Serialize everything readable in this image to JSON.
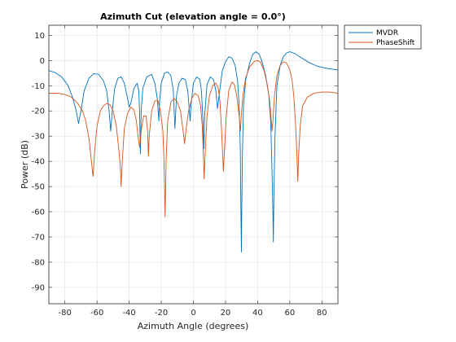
{
  "chart_data": {
    "type": "line",
    "title": "Azimuth Cut (elevation angle = 0.0°)",
    "xlabel": "Azimuth Angle (degrees)",
    "ylabel": "Power (dB)",
    "xlim": [
      -90,
      90
    ],
    "ylim": [
      -96.5,
      14
    ],
    "xticks": [
      -80,
      -60,
      -40,
      -20,
      0,
      20,
      40,
      60,
      80
    ],
    "yticks": [
      10,
      0,
      -10,
      -20,
      -30,
      -40,
      -50,
      -60,
      -70,
      -80,
      -90
    ],
    "grid": true,
    "legend_position": "outside-top-right",
    "series": [
      {
        "name": "MVDR",
        "color": "#0072BD",
        "points": [
          [
            -90,
            -4
          ],
          [
            -86,
            -4.8
          ],
          [
            -82,
            -6.5
          ],
          [
            -78,
            -10
          ],
          [
            -75,
            -15
          ],
          [
            -73,
            -20
          ],
          [
            -71.5,
            -25
          ],
          [
            -70,
            -20
          ],
          [
            -68,
            -12
          ],
          [
            -65,
            -7
          ],
          [
            -62,
            -5.2
          ],
          [
            -59,
            -5.5
          ],
          [
            -56,
            -8
          ],
          [
            -54,
            -12
          ],
          [
            -52.5,
            -20
          ],
          [
            -51.5,
            -28
          ],
          [
            -50.5,
            -20
          ],
          [
            -49,
            -11
          ],
          [
            -47,
            -7
          ],
          [
            -45,
            -6.5
          ],
          [
            -43,
            -9
          ],
          [
            -41,
            -15
          ],
          [
            -40,
            -18.5
          ],
          [
            -39,
            -17
          ],
          [
            -37,
            -11
          ],
          [
            -35,
            -9
          ],
          [
            -34,
            -12
          ],
          [
            -33.5,
            -20
          ],
          [
            -33,
            -37
          ],
          [
            -32.5,
            -20
          ],
          [
            -31.5,
            -11
          ],
          [
            -29,
            -6.5
          ],
          [
            -26,
            -5.5
          ],
          [
            -24,
            -9
          ],
          [
            -22.5,
            -15
          ],
          [
            -21.5,
            -24
          ],
          [
            -21,
            -16
          ],
          [
            -20,
            -9
          ],
          [
            -18,
            -5
          ],
          [
            -16,
            -4.5
          ],
          [
            -14,
            -6
          ],
          [
            -12.5,
            -12
          ],
          [
            -11.5,
            -27
          ],
          [
            -10.5,
            -14
          ],
          [
            -9,
            -9
          ],
          [
            -7,
            -7
          ],
          [
            -5,
            -7.5
          ],
          [
            -3.5,
            -12
          ],
          [
            -2.5,
            -20
          ],
          [
            -2,
            -24
          ],
          [
            -1.5,
            -18
          ],
          [
            0,
            -9
          ],
          [
            2,
            -6.5
          ],
          [
            4,
            -7.5
          ],
          [
            5,
            -12
          ],
          [
            6,
            -24
          ],
          [
            6.5,
            -35
          ],
          [
            7,
            -22
          ],
          [
            8.5,
            -9.5
          ],
          [
            10.5,
            -6.5
          ],
          [
            12.5,
            -7.5
          ],
          [
            14,
            -12
          ],
          [
            15,
            -19
          ],
          [
            16,
            -14
          ],
          [
            18,
            -4
          ],
          [
            20,
            -0.5
          ],
          [
            22,
            1.5
          ],
          [
            24,
            1
          ],
          [
            26,
            -2
          ],
          [
            27.5,
            -8
          ],
          [
            28.5,
            -18
          ],
          [
            29.2,
            -35
          ],
          [
            29.6,
            -60
          ],
          [
            29.9,
            -76
          ],
          [
            30.1,
            -60
          ],
          [
            30.5,
            -38
          ],
          [
            31.2,
            -18
          ],
          [
            32.5,
            -8
          ],
          [
            35,
            -1
          ],
          [
            37,
            2.5
          ],
          [
            39,
            3.5
          ],
          [
            41,
            2.5
          ],
          [
            43,
            -1
          ],
          [
            45,
            -6
          ],
          [
            47,
            -14
          ],
          [
            48.2,
            -25
          ],
          [
            49,
            -45
          ],
          [
            49.5,
            -60
          ],
          [
            49.8,
            -72
          ],
          [
            50.1,
            -55
          ],
          [
            50.8,
            -30
          ],
          [
            52,
            -10
          ],
          [
            54,
            -2
          ],
          [
            56,
            1.5
          ],
          [
            58,
            3
          ],
          [
            60,
            3.5
          ],
          [
            63,
            2.8
          ],
          [
            67,
            1.2
          ],
          [
            72,
            -0.8
          ],
          [
            77,
            -2.2
          ],
          [
            82,
            -3
          ],
          [
            86,
            -3.4
          ],
          [
            90,
            -3.8
          ]
        ]
      },
      {
        "name": "PhaseShift",
        "color": "#D95319",
        "points": [
          [
            -90,
            -13
          ],
          [
            -84,
            -13
          ],
          [
            -80,
            -13.5
          ],
          [
            -76,
            -14.5
          ],
          [
            -72,
            -17
          ],
          [
            -69,
            -20
          ],
          [
            -67,
            -24
          ],
          [
            -65,
            -31
          ],
          [
            -63.5,
            -40
          ],
          [
            -62.5,
            -46
          ],
          [
            -61.5,
            -36
          ],
          [
            -60,
            -26
          ],
          [
            -58,
            -20
          ],
          [
            -56,
            -18
          ],
          [
            -54,
            -17
          ],
          [
            -52,
            -17.5
          ],
          [
            -50,
            -20
          ],
          [
            -48,
            -26
          ],
          [
            -46.5,
            -35
          ],
          [
            -45.5,
            -42
          ],
          [
            -45,
            -50
          ],
          [
            -44.3,
            -40
          ],
          [
            -43,
            -27
          ],
          [
            -41,
            -21
          ],
          [
            -39,
            -18.5
          ],
          [
            -37,
            -19.5
          ],
          [
            -35.5,
            -24
          ],
          [
            -34.5,
            -30
          ],
          [
            -33.5,
            -34.5
          ],
          [
            -32.5,
            -28
          ],
          [
            -31,
            -22
          ],
          [
            -29.5,
            -22
          ],
          [
            -28.5,
            -28
          ],
          [
            -28,
            -38
          ],
          [
            -27.5,
            -30
          ],
          [
            -26,
            -20
          ],
          [
            -24,
            -16
          ],
          [
            -22,
            -16
          ],
          [
            -20.5,
            -20
          ],
          [
            -19,
            -28
          ],
          [
            -18.3,
            -40
          ],
          [
            -17.6,
            -62
          ],
          [
            -17,
            -40
          ],
          [
            -16,
            -24
          ],
          [
            -14,
            -16.5
          ],
          [
            -12,
            -15
          ],
          [
            -10,
            -16.5
          ],
          [
            -8,
            -20
          ],
          [
            -7,
            -25
          ],
          [
            -6,
            -30
          ],
          [
            -5.5,
            -33
          ],
          [
            -4.5,
            -27
          ],
          [
            -3,
            -20
          ],
          [
            -1,
            -15
          ],
          [
            1,
            -13
          ],
          [
            3,
            -14
          ],
          [
            4.5,
            -18
          ],
          [
            5.5,
            -26
          ],
          [
            6.2,
            -37
          ],
          [
            6.7,
            -47
          ],
          [
            7.3,
            -37
          ],
          [
            8.5,
            -22
          ],
          [
            10,
            -14
          ],
          [
            12,
            -10
          ],
          [
            14,
            -9
          ],
          [
            15.5,
            -11
          ],
          [
            16.5,
            -16
          ],
          [
            17.5,
            -27
          ],
          [
            18.2,
            -37
          ],
          [
            18.7,
            -44
          ],
          [
            19.3,
            -36
          ],
          [
            20.5,
            -22
          ],
          [
            22,
            -12
          ],
          [
            24,
            -8.5
          ],
          [
            25.5,
            -9.5
          ],
          [
            27,
            -14
          ],
          [
            28.5,
            -22
          ],
          [
            29.3,
            -28
          ],
          [
            29.8,
            -22
          ],
          [
            30.8,
            -14
          ],
          [
            32.5,
            -7
          ],
          [
            35,
            -2.5
          ],
          [
            38,
            -0.3
          ],
          [
            40,
            0
          ],
          [
            42,
            -0.8
          ],
          [
            44,
            -4
          ],
          [
            46,
            -9.5
          ],
          [
            47.5,
            -16
          ],
          [
            48.5,
            -24
          ],
          [
            49,
            -28
          ],
          [
            49.5,
            -24
          ],
          [
            50.5,
            -14
          ],
          [
            52,
            -6
          ],
          [
            54,
            -2
          ],
          [
            56,
            -0.5
          ],
          [
            58,
            -1
          ],
          [
            60,
            -3.5
          ],
          [
            61.5,
            -8
          ],
          [
            62.5,
            -14
          ],
          [
            63.5,
            -24
          ],
          [
            64.5,
            -38
          ],
          [
            65,
            -48
          ],
          [
            65.5,
            -38
          ],
          [
            66.5,
            -26
          ],
          [
            68,
            -18
          ],
          [
            71,
            -14.5
          ],
          [
            75,
            -13
          ],
          [
            80,
            -12.5
          ],
          [
            85,
            -12.5
          ],
          [
            90,
            -13
          ]
        ]
      }
    ]
  }
}
